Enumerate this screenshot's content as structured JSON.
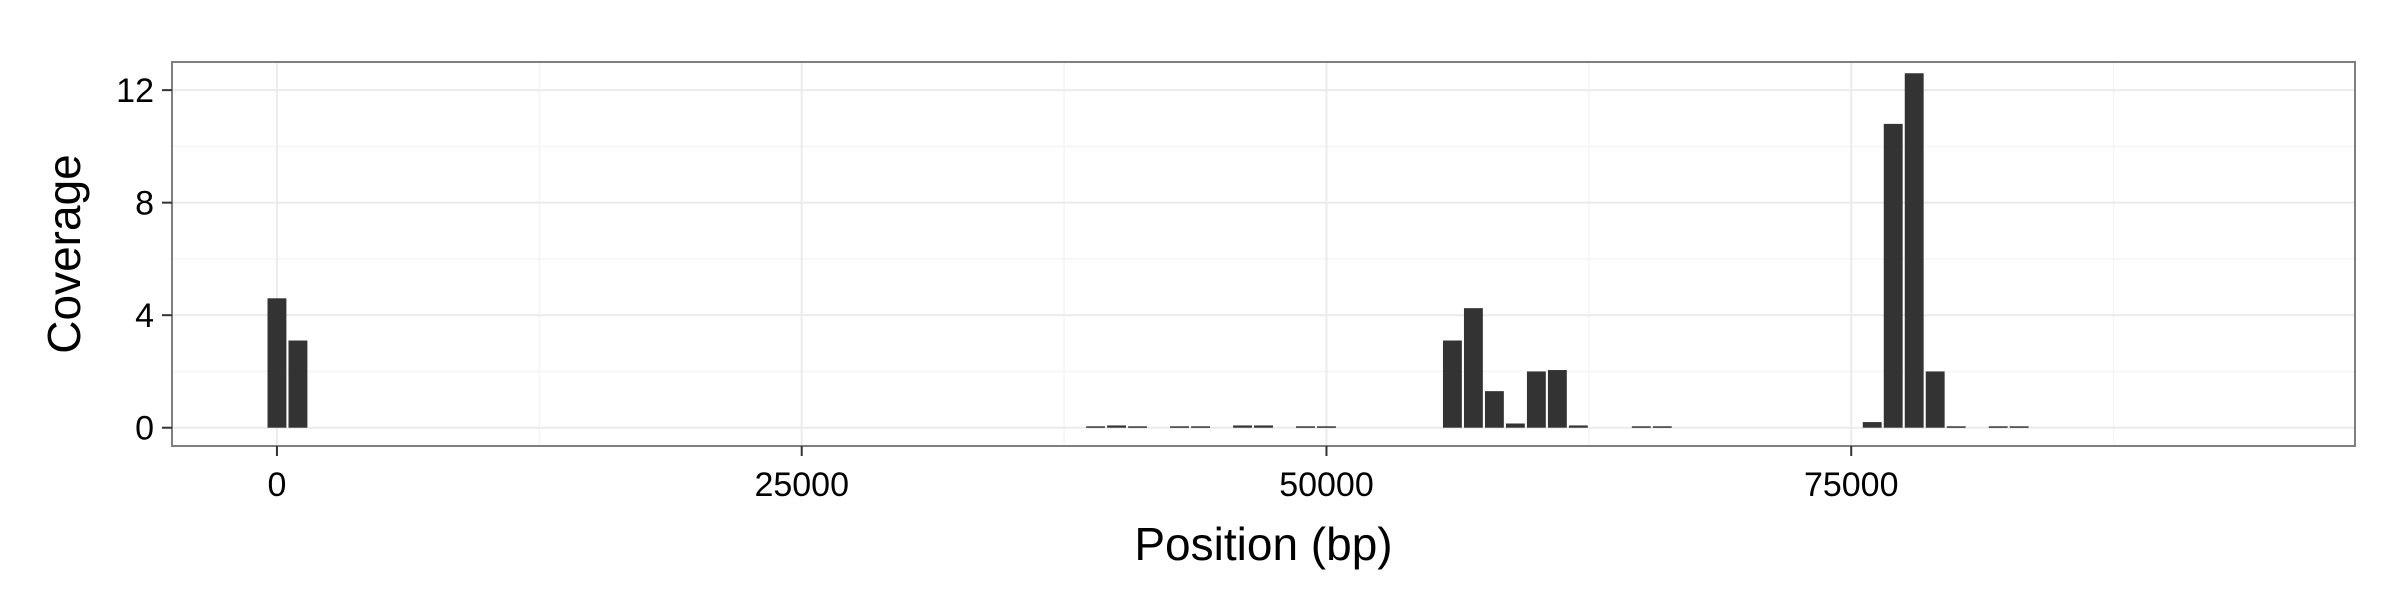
{
  "chart_data": {
    "type": "bar",
    "xlabel": "Position (bp)",
    "ylabel": "Coverage",
    "xlim": [
      -5000,
      99000
    ],
    "ylim": [
      -0.65,
      13.0
    ],
    "xticks": [
      {
        "value": 0,
        "label": "0"
      },
      {
        "value": 25000,
        "label": "25000"
      },
      {
        "value": 50000,
        "label": "50000"
      },
      {
        "value": 75000,
        "label": "75000"
      }
    ],
    "yticks": [
      {
        "value": 0,
        "label": "0"
      },
      {
        "value": 4,
        "label": "4"
      },
      {
        "value": 8,
        "label": "8"
      },
      {
        "value": 12,
        "label": "12"
      }
    ],
    "bar_width": 1000,
    "bars": [
      {
        "x": 0,
        "y": 4.6
      },
      {
        "x": 1000,
        "y": 3.1
      },
      {
        "x": 39000,
        "y": 0.05
      },
      {
        "x": 40000,
        "y": 0.08
      },
      {
        "x": 41000,
        "y": 0.05
      },
      {
        "x": 43000,
        "y": 0.05
      },
      {
        "x": 44000,
        "y": 0.05
      },
      {
        "x": 46000,
        "y": 0.08
      },
      {
        "x": 47000,
        "y": 0.08
      },
      {
        "x": 49000,
        "y": 0.05
      },
      {
        "x": 50000,
        "y": 0.05
      },
      {
        "x": 56000,
        "y": 3.1
      },
      {
        "x": 57000,
        "y": 4.25
      },
      {
        "x": 58000,
        "y": 1.3
      },
      {
        "x": 59000,
        "y": 0.15
      },
      {
        "x": 60000,
        "y": 2.0
      },
      {
        "x": 61000,
        "y": 2.05
      },
      {
        "x": 62000,
        "y": 0.08
      },
      {
        "x": 65000,
        "y": 0.05
      },
      {
        "x": 66000,
        "y": 0.05
      },
      {
        "x": 76000,
        "y": 0.2
      },
      {
        "x": 77000,
        "y": 10.8
      },
      {
        "x": 78000,
        "y": 12.6
      },
      {
        "x": 79000,
        "y": 2.0
      },
      {
        "x": 80000,
        "y": 0.05
      },
      {
        "x": 82000,
        "y": 0.05
      },
      {
        "x": 83000,
        "y": 0.05
      }
    ],
    "grid": true,
    "legend": "none",
    "bar_color": "#333333",
    "panel_border_color": "#7f7f7f",
    "major_grid_color": "#ebebeb",
    "minor_grid_color": "#f5f5f5"
  }
}
